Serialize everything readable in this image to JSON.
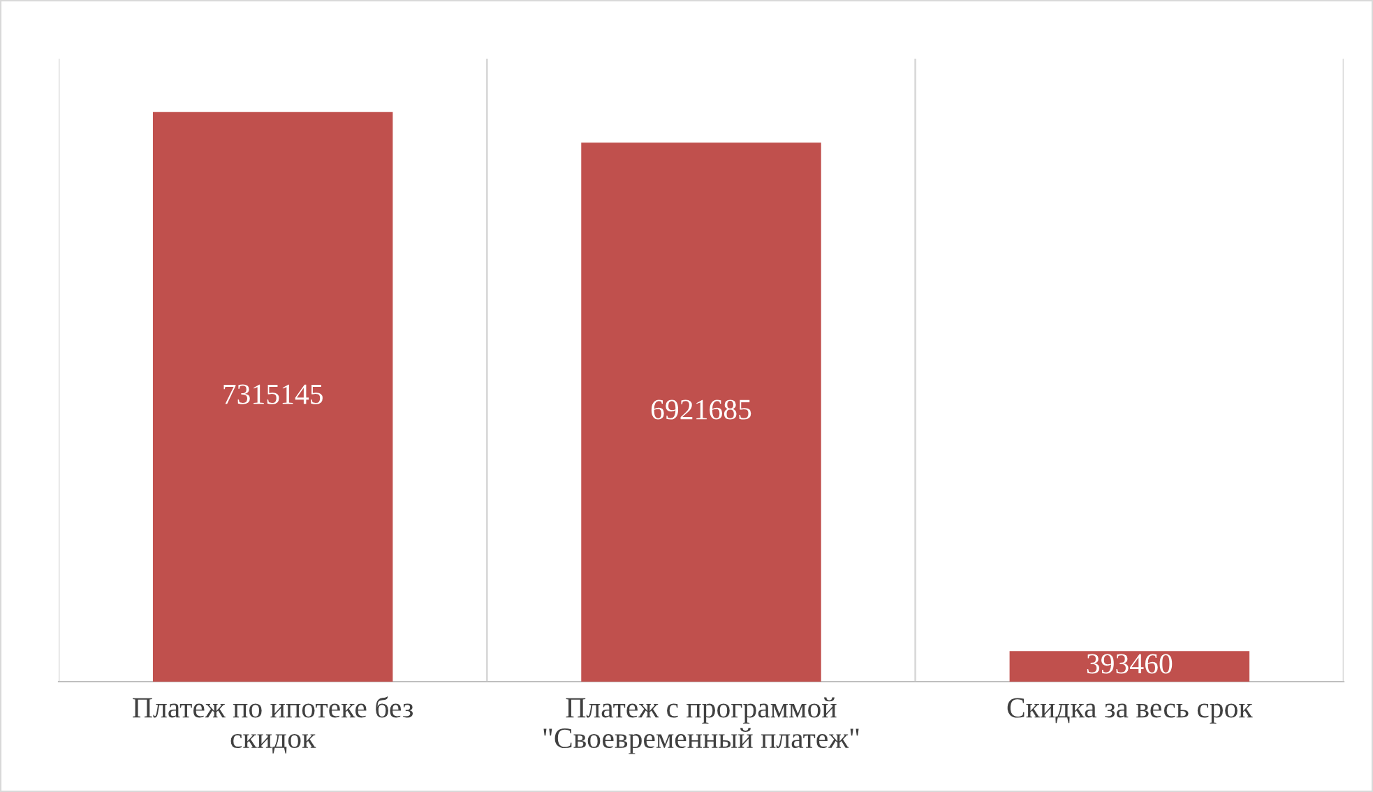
{
  "chart_data": {
    "type": "bar",
    "categories": [
      "Платеж по ипотеке без\nскидок",
      "Платеж с программой\n\"Своевременный платеж\"",
      "Скидка за весь срок"
    ],
    "values": [
      7315145,
      6921685,
      393460
    ],
    "color": "#c0504d",
    "ylim": [
      0,
      8000000
    ],
    "data_labels": true,
    "grid": "x",
    "tick_labels": "x",
    "legend": false
  }
}
